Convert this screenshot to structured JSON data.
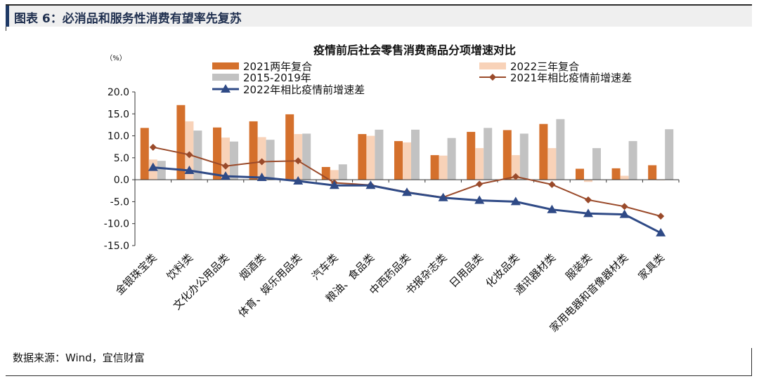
{
  "figure": {
    "title": "图表 6：必消品和服务性消费有望率先复苏",
    "source": "数据来源：Wind，宜信财富"
  },
  "colors": {
    "s2021": "#d4702c",
    "s2022": "#f8d2b8",
    "s1519": "#c2c2c2",
    "line2021": "#9a4a2a",
    "line2022": "#2f4a86",
    "header_bg": "#efefef",
    "header_accent": "#1f3a66"
  },
  "chart_data": {
    "type": "bar",
    "title": "疫情前后社会零售消费商品分项增速对比",
    "ylabel": "（%）",
    "ylim": [
      -15,
      20
    ],
    "yticks": [
      "20.0",
      "15.0",
      "10.0",
      "5.0",
      "0.0",
      "-5.0",
      "-10.0",
      "-15.0"
    ],
    "categories": [
      "金银珠宝类",
      "饮料类",
      "文化办公用品类",
      "烟酒类",
      "体育、娱乐用品类",
      "汽车类",
      "粮油、食品类",
      "中西药品类",
      "书报杂志类",
      "日用品类",
      "化妆品类",
      "通讯器材类",
      "服装类",
      "家用电器和音像器材类",
      "家具类"
    ],
    "series": [
      {
        "name": "2021两年复合",
        "type": "bar",
        "values": [
          11.8,
          17.0,
          11.9,
          13.3,
          14.9,
          2.9,
          10.4,
          8.8,
          5.6,
          10.9,
          11.3,
          12.7,
          2.5,
          2.6,
          3.3
        ]
      },
      {
        "name": "2022三年复合",
        "type": "bar",
        "values": [
          4.6,
          13.3,
          9.6,
          9.7,
          10.4,
          2.2,
          10.0,
          8.5,
          5.5,
          7.2,
          5.6,
          7.2,
          -0.5,
          0.9,
          0.0
        ]
      },
      {
        "name": "2015-2019年",
        "type": "bar",
        "values": [
          4.3,
          11.2,
          8.7,
          9.1,
          10.5,
          3.5,
          11.4,
          11.4,
          9.5,
          11.8,
          10.5,
          13.8,
          7.2,
          8.8,
          11.5
        ]
      },
      {
        "name": "2021年相比疫情前增速差",
        "type": "line",
        "values": [
          7.4,
          5.7,
          3.1,
          4.1,
          4.3,
          -0.7,
          -1.2,
          -2.8,
          -4.0,
          -1.0,
          0.7,
          -1.1,
          -4.6,
          -6.1,
          -8.3
        ]
      },
      {
        "name": "2022年相比疫情前增速差",
        "type": "line",
        "values": [
          2.8,
          2.1,
          0.8,
          0.5,
          -0.3,
          -1.3,
          -1.3,
          -2.9,
          -4.1,
          -4.7,
          -5.0,
          -6.8,
          -7.7,
          -7.9,
          -12.1
        ]
      }
    ],
    "legend_position": "top",
    "grid": false
  }
}
